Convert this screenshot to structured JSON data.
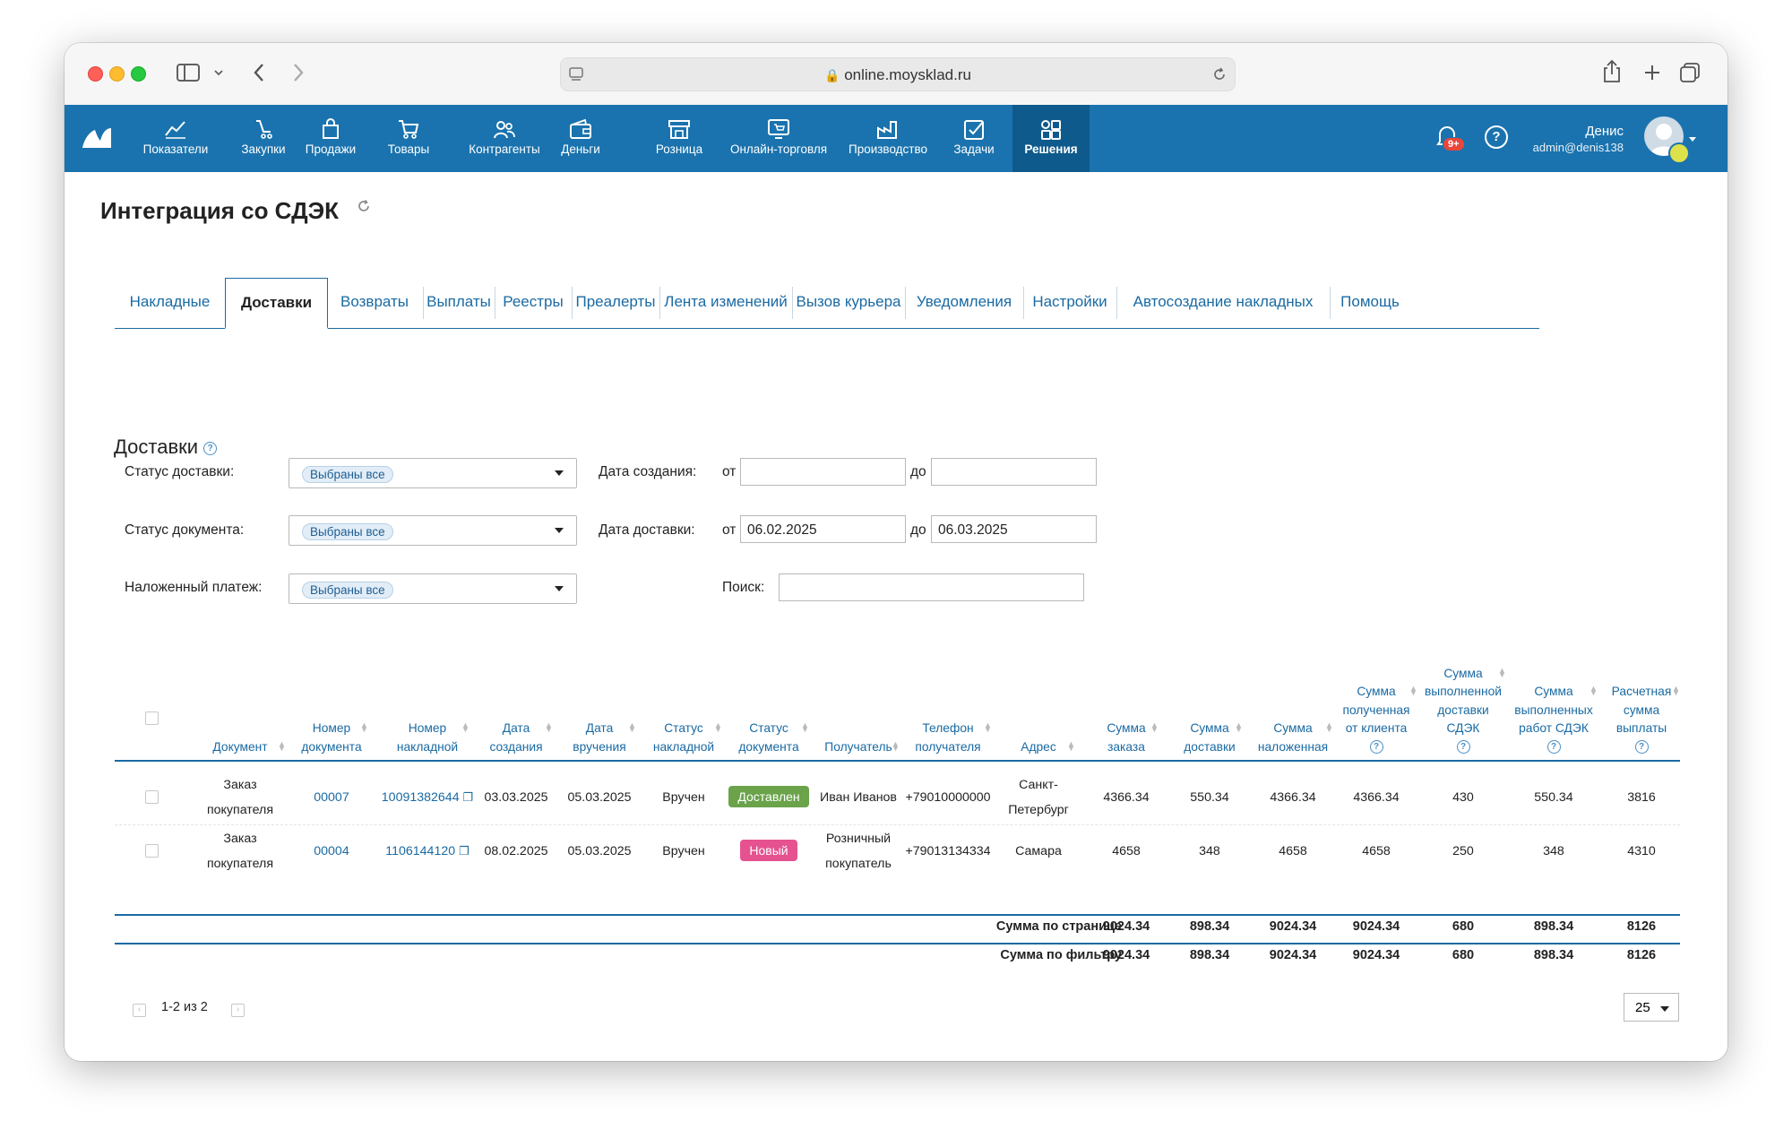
{
  "browser": {
    "url": "online.moysklad.ru"
  },
  "nav": {
    "items": [
      {
        "label": "Показатели",
        "icon": "chart-line-icon"
      },
      {
        "label": "Закупки",
        "icon": "cart-hand-icon"
      },
      {
        "label": "Продажи",
        "icon": "shopping-bag-icon"
      },
      {
        "label": "Товары",
        "icon": "cart-icon"
      },
      {
        "label": "Контрагенты",
        "icon": "people-icon"
      },
      {
        "label": "Деньги",
        "icon": "wallet-icon"
      },
      {
        "label": "Розница",
        "icon": "store-icon"
      },
      {
        "label": "Онлайн-торговля",
        "icon": "online-store-icon"
      },
      {
        "label": "Производство",
        "icon": "factory-icon"
      },
      {
        "label": "Задачи",
        "icon": "checkbox-icon"
      },
      {
        "label": "Решения",
        "icon": "apps-icon"
      }
    ],
    "active": "Решения",
    "notifications_badge": "9+",
    "user_name": "Денис",
    "user_login": "admin@denis138"
  },
  "page": {
    "title": "Интеграция со СДЭК",
    "tabs": [
      "Накладные",
      "Доставки",
      "Возвраты",
      "Выплаты",
      "Реестры",
      "Преалерты",
      "Лента изменений",
      "Вызов курьера",
      "Уведомления",
      "Настройки",
      "Автосоздание накладных",
      "Помощь"
    ],
    "active_tab": "Доставки",
    "section_title": "Доставки"
  },
  "filters": {
    "delivery_status_label": "Статус доставки:",
    "document_status_label": "Статус документа:",
    "cod_label": "Наложенный платеж:",
    "all_selected": "Выбраны все",
    "created_date_label": "Дата создания:",
    "delivery_date_label": "Дата доставки:",
    "from": "от",
    "to": "до",
    "created_from": "",
    "created_to": "",
    "delivery_from": "06.02.2025",
    "delivery_to": "06.03.2025",
    "search_label": "Поиск:",
    "search_value": ""
  },
  "table": {
    "headers": {
      "document": "Документ",
      "doc_number": [
        "Номер",
        "документа"
      ],
      "waybill_number": [
        "Номер",
        "накладной"
      ],
      "created": [
        "Дата",
        "создания"
      ],
      "delivered": [
        "Дата",
        "вручения"
      ],
      "waybill_status": [
        "Статус",
        "накладной"
      ],
      "doc_status": [
        "Статус",
        "документа"
      ],
      "recipient": "Получатель",
      "phone": [
        "Телефон",
        "получателя"
      ],
      "address": "Адрес",
      "order_sum": [
        "Сумма",
        "заказа"
      ],
      "delivery_sum": [
        "Сумма",
        "доставки"
      ],
      "cod_sum": [
        "Сумма",
        "наложенная"
      ],
      "received_sum": [
        "Сумма",
        "полученная",
        "от клиента"
      ],
      "cdek_delivery_sum": [
        "Сумма",
        "выполненной",
        "доставки",
        "СДЭК"
      ],
      "cdek_works_sum": [
        "Сумма",
        "выполненных",
        "работ СДЭК"
      ],
      "payout_sum": [
        "Расчетная",
        "сумма",
        "выплаты"
      ]
    },
    "rows": [
      {
        "document": [
          "Заказ",
          "покупателя"
        ],
        "doc_number": "00007",
        "waybill_number": "10091382644",
        "created": "03.03.2025",
        "delivered": "05.03.2025",
        "waybill_status": "Вручен",
        "doc_status": "Доставлен",
        "doc_status_color": "#6aa34a",
        "recipient": [
          "Иван Иванов"
        ],
        "phone": "+79010000000",
        "address": [
          "Санкт-",
          "Петербург"
        ],
        "order_sum": "4366.34",
        "delivery_sum": "550.34",
        "cod_sum": "4366.34",
        "received_sum": "4366.34",
        "cdek_delivery_sum": "430",
        "cdek_works_sum": "550.34",
        "payout_sum": "3816"
      },
      {
        "document": [
          "Заказ",
          "покупателя"
        ],
        "doc_number": "00004",
        "waybill_number": "1106144120",
        "created": "08.02.2025",
        "delivered": "05.03.2025",
        "waybill_status": "Вручен",
        "doc_status": "Новый",
        "doc_status_color": "#e6528f",
        "recipient": [
          "Розничный",
          "покупатель"
        ],
        "phone": "+79013134334",
        "address": [
          "Самара"
        ],
        "order_sum": "4658",
        "delivery_sum": "348",
        "cod_sum": "4658",
        "received_sum": "4658",
        "cdek_delivery_sum": "250",
        "cdek_works_sum": "348",
        "payout_sum": "4310"
      }
    ],
    "page_total": {
      "label": "Сумма по странице",
      "values": [
        "9024.34",
        "898.34",
        "9024.34",
        "9024.34",
        "680",
        "898.34",
        "8126"
      ]
    },
    "filter_total": {
      "label": "Сумма по фильтру",
      "values": [
        "9024.34",
        "898.34",
        "9024.34",
        "9024.34",
        "680",
        "898.34",
        "8126"
      ]
    }
  },
  "pagination": {
    "range": "1-2 из 2",
    "per_page": "25"
  }
}
